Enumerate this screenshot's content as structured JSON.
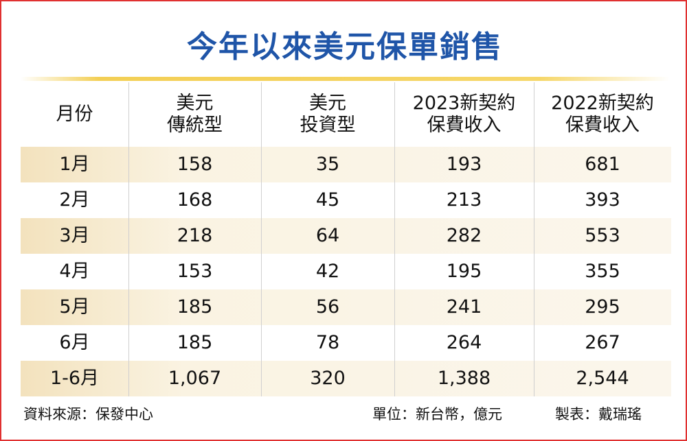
{
  "title": "今年以來美元保單銷售",
  "table": {
    "header": [
      [
        "月份"
      ],
      [
        "美元",
        "傳統型"
      ],
      [
        "美元",
        "投資型"
      ],
      [
        "2023新契約",
        "保費收入"
      ],
      [
        "2022新契約",
        "保費收入"
      ]
    ],
    "rows": [
      [
        "1月",
        "158",
        "35",
        "193",
        "681"
      ],
      [
        "2月",
        "168",
        "45",
        "213",
        "393"
      ],
      [
        "3月",
        "218",
        "64",
        "282",
        "553"
      ],
      [
        "4月",
        "153",
        "42",
        "195",
        "355"
      ],
      [
        "5月",
        "185",
        "56",
        "241",
        "295"
      ],
      [
        "6月",
        "185",
        "78",
        "264",
        "267"
      ],
      [
        "1-6月",
        "1,067",
        "320",
        "1,388",
        "2,544"
      ]
    ]
  },
  "footer": {
    "source": "資料來源：保發中心",
    "unit": "單位：新台幣，億元",
    "maker": "製表：戴瑞瑤"
  }
}
